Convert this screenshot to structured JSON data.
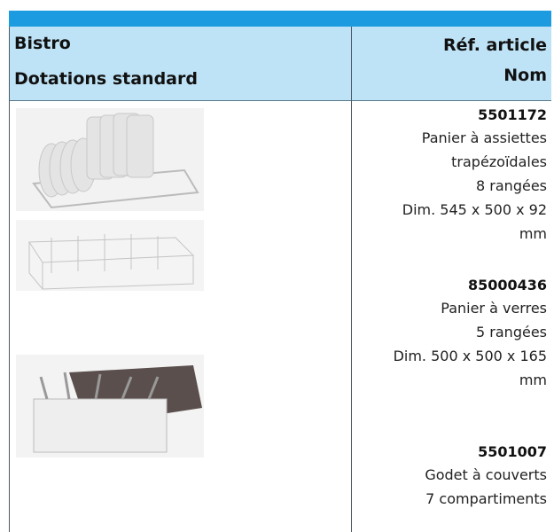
{
  "header": {
    "left": [
      "Bistro",
      "Dotations standard"
    ],
    "right": [
      "Réf. article",
      "Nom"
    ]
  },
  "items": [
    {
      "ref": "5501172",
      "lines": [
        "Panier à assiettes",
        "trapézoïdales",
        "8 rangées",
        "Dim. 545 x 500 x 92",
        "mm"
      ]
    },
    {
      "ref": "85000436",
      "lines": [
        "Panier à verres",
        "5 rangées",
        "Dim. 500 x 500 x 165",
        "mm"
      ]
    },
    {
      "ref": "5501007",
      "lines": [
        "Godet à couverts",
        "7 compartiments"
      ]
    }
  ]
}
